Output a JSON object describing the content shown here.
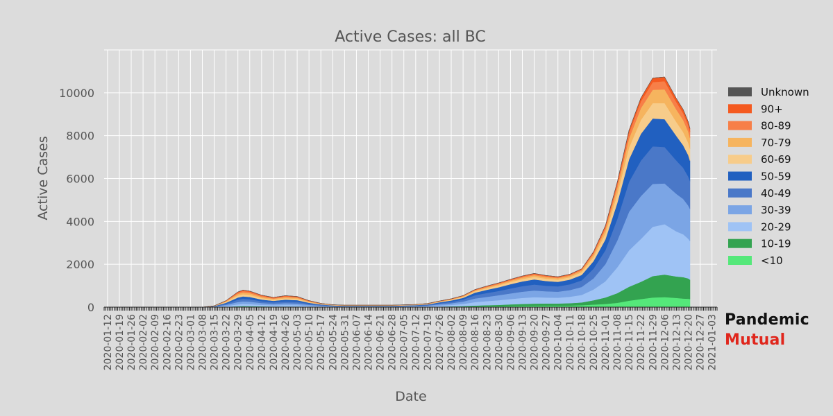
{
  "brand": {
    "line1": "Pandemic",
    "line2": "Mutual",
    "line1_color": "#111111",
    "line2_color": "#e0261c"
  },
  "chart_data": {
    "type": "area",
    "stacked": true,
    "title": "Active Cases: all BC",
    "xlabel": "Date",
    "ylabel": "Active Cases",
    "ylim": [
      0,
      12000
    ],
    "yticks": [
      0,
      2000,
      4000,
      6000,
      8000,
      10000
    ],
    "xlim": [
      "2020-01-10",
      "2021-01-06"
    ],
    "grid": true,
    "legend_position": "right",
    "xticks": [
      "2020-01-12",
      "2020-01-19",
      "2020-01-26",
      "2020-02-02",
      "2020-02-09",
      "2020-02-16",
      "2020-02-23",
      "2020-03-01",
      "2020-03-08",
      "2020-03-15",
      "2020-03-22",
      "2020-03-29",
      "2020-04-05",
      "2020-04-12",
      "2020-04-19",
      "2020-04-26",
      "2020-05-03",
      "2020-05-10",
      "2020-05-17",
      "2020-05-24",
      "2020-05-31",
      "2020-06-07",
      "2020-06-14",
      "2020-06-21",
      "2020-06-28",
      "2020-07-05",
      "2020-07-12",
      "2020-07-19",
      "2020-07-26",
      "2020-08-02",
      "2020-08-09",
      "2020-08-16",
      "2020-08-23",
      "2020-08-30",
      "2020-09-06",
      "2020-09-13",
      "2020-09-20",
      "2020-09-27",
      "2020-10-04",
      "2020-10-11",
      "2020-10-18",
      "2020-10-25",
      "2020-11-01",
      "2020-11-08",
      "2020-11-15",
      "2020-11-22",
      "2020-11-29",
      "2020-12-06",
      "2020-12-13",
      "2020-12-20",
      "2020-12-27",
      "2021-01-03"
    ],
    "x": [
      "2020-03-08",
      "2020-03-15",
      "2020-03-22",
      "2020-03-29",
      "2020-04-01",
      "2020-04-05",
      "2020-04-12",
      "2020-04-19",
      "2020-04-26",
      "2020-05-03",
      "2020-05-10",
      "2020-05-17",
      "2020-05-24",
      "2020-05-31",
      "2020-06-14",
      "2020-06-28",
      "2020-07-12",
      "2020-07-19",
      "2020-07-26",
      "2020-08-02",
      "2020-08-09",
      "2020-08-16",
      "2020-08-23",
      "2020-08-30",
      "2020-09-06",
      "2020-09-13",
      "2020-09-20",
      "2020-09-27",
      "2020-10-04",
      "2020-10-11",
      "2020-10-18",
      "2020-10-25",
      "2020-11-01",
      "2020-11-08",
      "2020-11-15",
      "2020-11-22",
      "2020-11-29",
      "2020-12-06",
      "2020-12-13",
      "2020-12-17",
      "2020-12-20",
      "2020-12-21"
    ],
    "series": [
      {
        "name": "<10",
        "color": "#55e87a",
        "values": [
          0,
          5,
          10,
          20,
          25,
          22,
          18,
          15,
          15,
          14,
          10,
          8,
          7,
          6,
          6,
          6,
          7,
          8,
          12,
          15,
          20,
          30,
          35,
          40,
          50,
          60,
          65,
          70,
          70,
          75,
          90,
          120,
          150,
          200,
          300,
          380,
          450,
          470,
          430,
          400,
          390,
          380
        ]
      },
      {
        "name": "10-19",
        "color": "#33a350",
        "values": [
          0,
          5,
          10,
          20,
          25,
          22,
          18,
          15,
          15,
          14,
          10,
          8,
          7,
          6,
          6,
          6,
          8,
          10,
          15,
          20,
          30,
          45,
          55,
          65,
          80,
          90,
          100,
          100,
          100,
          110,
          130,
          200,
          300,
          450,
          650,
          800,
          1000,
          1050,
          1000,
          1000,
          950,
          900
        ]
      },
      {
        "name": "20-29",
        "color": "#9fc3f5",
        "values": [
          0,
          10,
          40,
          90,
          100,
          95,
          70,
          60,
          70,
          65,
          40,
          25,
          15,
          12,
          12,
          12,
          18,
          25,
          50,
          70,
          100,
          160,
          190,
          220,
          250,
          280,
          300,
          280,
          270,
          300,
          350,
          500,
          750,
          1200,
          1700,
          2000,
          2300,
          2350,
          2100,
          2000,
          1850,
          1800
        ]
      },
      {
        "name": "30-39",
        "color": "#7ba5e5",
        "values": [
          0,
          10,
          50,
          110,
          120,
          115,
          85,
          70,
          85,
          80,
          50,
          30,
          18,
          15,
          15,
          15,
          22,
          30,
          55,
          75,
          110,
          170,
          200,
          230,
          260,
          290,
          310,
          290,
          280,
          310,
          370,
          520,
          800,
          1250,
          1800,
          2000,
          2000,
          1900,
          1750,
          1650,
          1550,
          1500
        ]
      },
      {
        "name": "40-49",
        "color": "#4a78c8",
        "values": [
          0,
          10,
          50,
          110,
          120,
          115,
          85,
          70,
          85,
          80,
          50,
          30,
          18,
          15,
          15,
          15,
          20,
          28,
          50,
          70,
          95,
          150,
          180,
          200,
          230,
          260,
          280,
          260,
          250,
          270,
          310,
          450,
          650,
          1000,
          1400,
          1650,
          1750,
          1700,
          1550,
          1450,
          1350,
          1300
        ]
      },
      {
        "name": "50-59",
        "color": "#2160c0",
        "values": [
          0,
          8,
          45,
          100,
          110,
          105,
          80,
          65,
          80,
          75,
          45,
          25,
          15,
          12,
          12,
          12,
          18,
          25,
          45,
          60,
          80,
          120,
          150,
          170,
          200,
          220,
          240,
          220,
          210,
          220,
          250,
          350,
          500,
          750,
          1050,
          1250,
          1300,
          1300,
          1150,
          1050,
          1000,
          950
        ]
      },
      {
        "name": "60-69",
        "color": "#f7cc8a",
        "values": [
          0,
          5,
          40,
          90,
          100,
          95,
          70,
          55,
          65,
          60,
          35,
          20,
          12,
          10,
          10,
          10,
          12,
          18,
          25,
          35,
          45,
          65,
          75,
          90,
          100,
          110,
          120,
          110,
          105,
          110,
          130,
          190,
          270,
          400,
          550,
          650,
          720,
          750,
          650,
          620,
          580,
          560
        ]
      },
      {
        "name": "70-79",
        "color": "#f6b45e",
        "values": [
          0,
          4,
          30,
          80,
          90,
          85,
          60,
          45,
          55,
          50,
          30,
          15,
          10,
          8,
          8,
          8,
          10,
          12,
          18,
          22,
          30,
          40,
          50,
          60,
          65,
          75,
          80,
          75,
          70,
          75,
          85,
          130,
          190,
          300,
          420,
          550,
          620,
          640,
          580,
          560,
          520,
          500
        ]
      },
      {
        "name": "80-89",
        "color": "#f77f48",
        "values": [
          0,
          3,
          20,
          60,
          70,
          65,
          50,
          40,
          45,
          40,
          25,
          12,
          8,
          6,
          6,
          6,
          8,
          10,
          12,
          15,
          20,
          28,
          35,
          40,
          45,
          50,
          55,
          50,
          45,
          45,
          50,
          80,
          120,
          180,
          260,
          320,
          360,
          380,
          340,
          320,
          300,
          290
        ]
      },
      {
        "name": "90+",
        "color": "#f45a20",
        "values": [
          0,
          1,
          8,
          30,
          35,
          32,
          25,
          20,
          22,
          20,
          12,
          6,
          4,
          3,
          3,
          3,
          4,
          5,
          6,
          8,
          10,
          12,
          15,
          18,
          20,
          22,
          25,
          23,
          20,
          20,
          25,
          40,
          60,
          90,
          130,
          160,
          190,
          200,
          180,
          170,
          160,
          155
        ]
      },
      {
        "name": "Unknown",
        "color": "#555555",
        "values": [
          0,
          0,
          0,
          0,
          0,
          0,
          0,
          0,
          0,
          0,
          0,
          0,
          0,
          0,
          0,
          0,
          0,
          0,
          0,
          0,
          0,
          0,
          0,
          0,
          0,
          0,
          0,
          0,
          0,
          0,
          0,
          0,
          0,
          0,
          0,
          0,
          0,
          0,
          0,
          0,
          0,
          0
        ]
      }
    ]
  }
}
